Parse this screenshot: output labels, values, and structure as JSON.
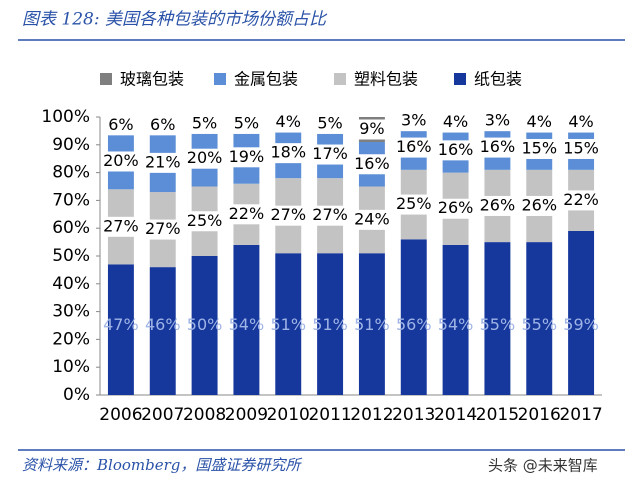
{
  "chart_data": {
    "type": "stacked-bar-percent",
    "title": "图表 128:  美国各种包装的市场份额占比",
    "source": "资料来源：Bloomberg，国盛证券研究所",
    "watermark": "头条 @未来智库",
    "categories": [
      "2006",
      "2007",
      "2008",
      "2009",
      "2010",
      "2011",
      "2012",
      "2013",
      "2014",
      "2015",
      "2016",
      "2017"
    ],
    "series": [
      {
        "name": "玻璃包装",
        "color": "#7f7f7f",
        "values": [
          6,
          6,
          5,
          5,
          4,
          5,
          9,
          3,
          4,
          3,
          4,
          4
        ],
        "value_labels": [
          "6%",
          "6%",
          "5%",
          "5%",
          "4%",
          "5%",
          "9%",
          "3%",
          "4%",
          "3%",
          "4%",
          "4%"
        ]
      },
      {
        "name": "金属包装",
        "color": "#5b8ed6",
        "values": [
          20,
          21,
          20,
          19,
          18,
          17,
          16,
          16,
          16,
          16,
          15,
          15
        ],
        "value_labels": [
          "20%",
          "21%",
          "20%",
          "19%",
          "18%",
          "17%",
          "16%",
          "16%",
          "16%",
          "16%",
          "15%",
          "15%"
        ]
      },
      {
        "name": "塑料包装",
        "color": "#c3c3c3",
        "values": [
          27,
          27,
          25,
          22,
          27,
          27,
          24,
          25,
          26,
          26,
          26,
          22
        ],
        "value_labels": [
          "27%",
          "27%",
          "25%",
          "22%",
          "27%",
          "27%",
          "24%",
          "25%",
          "26%",
          "26%",
          "26%",
          "22%"
        ]
      },
      {
        "name": "纸包装",
        "color": "#16379c",
        "values": [
          47,
          46,
          50,
          54,
          51,
          51,
          51,
          56,
          54,
          55,
          55,
          59
        ],
        "value_labels": [
          "47%",
          "46%",
          "50%",
          "54%",
          "51%",
          "51%",
          "51%",
          "56%",
          "54%",
          "55%",
          "55%",
          "59%"
        ]
      }
    ],
    "ylim": [
      0,
      100
    ],
    "yticks": [
      {
        "value": 0,
        "label": "0%"
      },
      {
        "value": 10,
        "label": "10%"
      },
      {
        "value": 20,
        "label": "20%"
      },
      {
        "value": 30,
        "label": "30%"
      },
      {
        "value": 40,
        "label": "40%"
      },
      {
        "value": 50,
        "label": "50%"
      },
      {
        "value": 60,
        "label": "60%"
      },
      {
        "value": 70,
        "label": "70%"
      },
      {
        "value": 80,
        "label": "80%"
      },
      {
        "value": 90,
        "label": "90%"
      },
      {
        "value": 100,
        "label": "100%"
      }
    ],
    "legend": "top"
  }
}
